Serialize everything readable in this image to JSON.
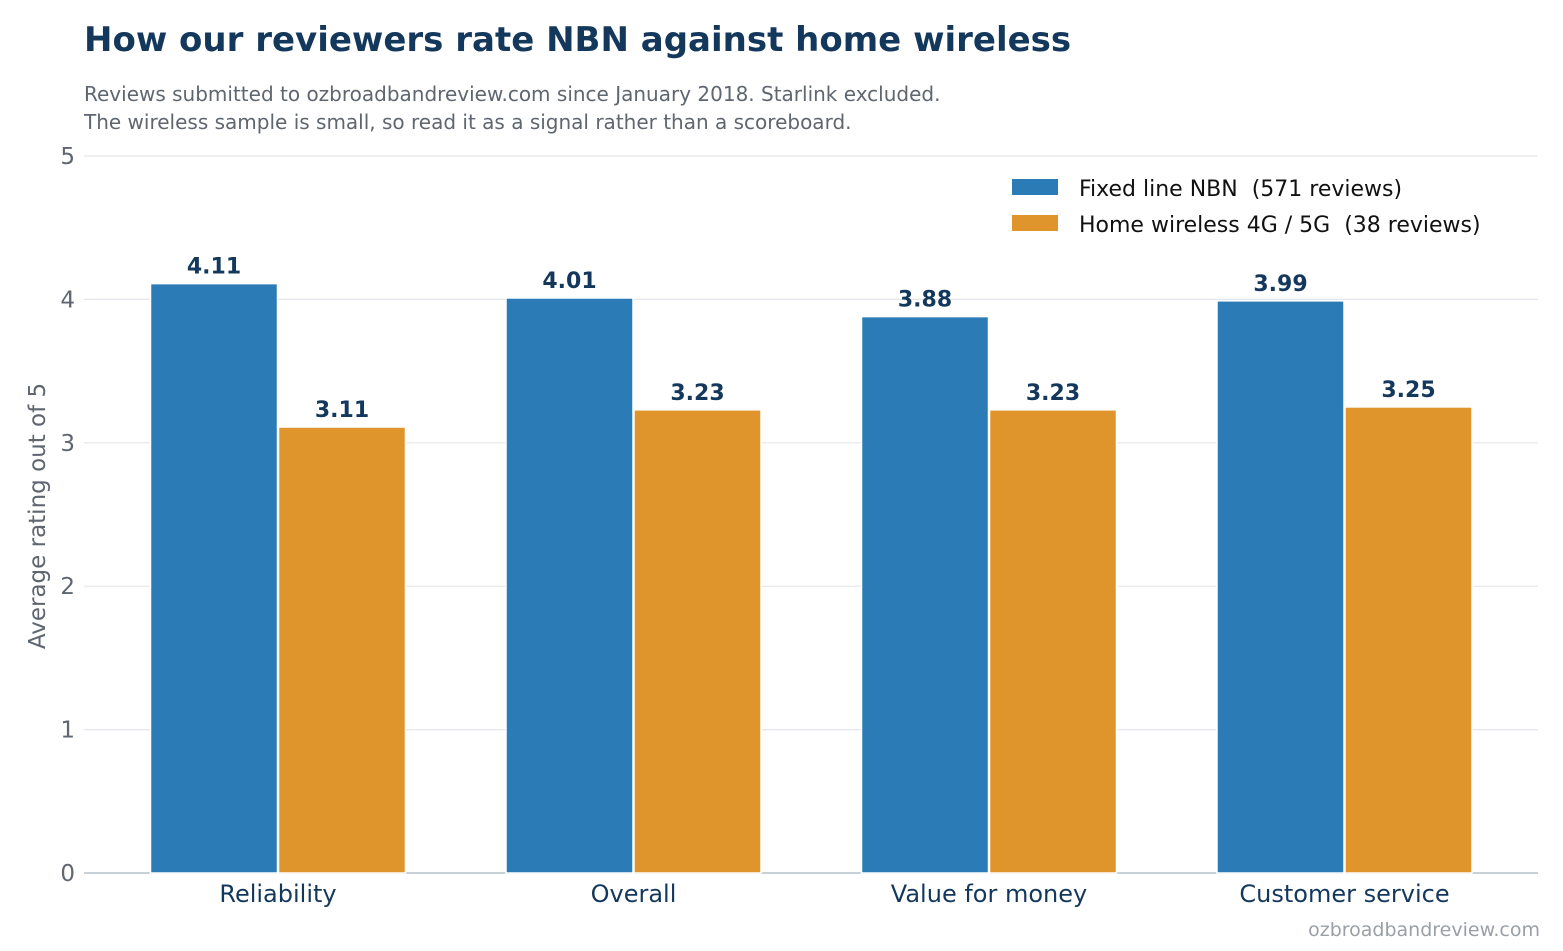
{
  "header": {
    "title": "How our reviewers rate NBN against home wireless",
    "subtitle_line1": "Reviews submitted to ozbroadbandreview.com since January 2018. Starlink excluded.",
    "subtitle_line2": "The wireless sample is small, so read it as a signal rather than a scoreboard."
  },
  "footer": {
    "source": "ozbroadbandreview.com"
  },
  "chart_data": {
    "type": "bar",
    "title": "How our reviewers rate NBN against home wireless",
    "xlabel": "",
    "ylabel": "Average rating out of 5",
    "ylim": [
      0,
      5
    ],
    "yticks": [
      0,
      1,
      2,
      3,
      4,
      5
    ],
    "grid": true,
    "legend_position": "top-right",
    "categories": [
      "Reliability",
      "Overall",
      "Value for money",
      "Customer service"
    ],
    "series": [
      {
        "name": "Fixed line NBN  (571 reviews)",
        "color": "#2b7bb6",
        "values": [
          4.11,
          4.01,
          3.88,
          3.99
        ],
        "labels": [
          "4.11",
          "4.01",
          "3.88",
          "3.99"
        ]
      },
      {
        "name": "Home wireless 4G / 5G  (38 reviews)",
        "color": "#e0952c",
        "values": [
          3.11,
          3.23,
          3.23,
          3.25
        ],
        "labels": [
          "3.11",
          "3.23",
          "3.23",
          "3.25"
        ]
      }
    ]
  }
}
